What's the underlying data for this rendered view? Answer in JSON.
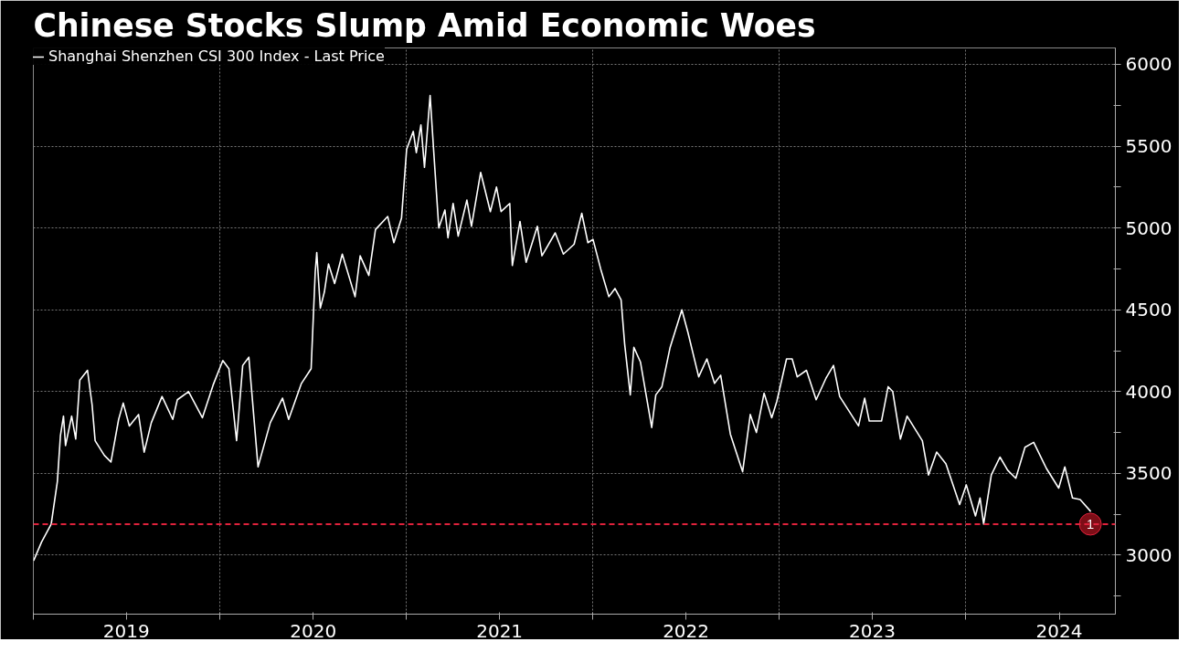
{
  "chart_data": {
    "type": "line",
    "title": "Chinese Stocks Slump Amid Economic Woes",
    "xlim": [
      "2019-01-01",
      "2024-10-20"
    ],
    "xticks": [
      {
        "value": "2019-01-01",
        "label": null
      },
      {
        "value": "2019-07-02",
        "label": "2019"
      },
      {
        "value": "2020-01-01",
        "label": null
      },
      {
        "value": "2020-07-02",
        "label": "2020"
      },
      {
        "value": "2021-01-01",
        "label": null
      },
      {
        "value": "2021-07-02",
        "label": "2021"
      },
      {
        "value": "2022-01-01",
        "label": null
      },
      {
        "value": "2022-07-02",
        "label": "2022"
      },
      {
        "value": "2023-01-01",
        "label": null
      },
      {
        "value": "2023-07-02",
        "label": "2023"
      },
      {
        "value": "2024-01-01",
        "label": null
      },
      {
        "value": "2024-07-02",
        "label": "2024"
      }
    ],
    "ylim": [
      2640,
      6100
    ],
    "yticks": [
      {
        "value": 2750,
        "label": null
      },
      3000,
      {
        "value": 3250,
        "label": null
      },
      3500,
      {
        "value": 3750,
        "label": null
      },
      4000,
      {
        "value": 4250,
        "label": null
      },
      4500,
      {
        "value": 4750,
        "label": null
      },
      5000,
      {
        "value": 5250,
        "label": null
      },
      5500,
      {
        "value": 5750,
        "label": null
      },
      6000
    ],
    "grid": true,
    "legend": "top left",
    "ref_lines": [
      {
        "axis": "y",
        "value": 3190,
        "label": null,
        "color": "#e0223c",
        "line_style": "dashed"
      }
    ],
    "annotations": [
      {
        "text": "1",
        "x": "2024-09-01",
        "y": 3190
      }
    ],
    "series": [
      {
        "name": "Shanghai Shenzhen CSI 300 Index - Last Price",
        "color": "#ffffff",
        "x": [
          "2019-01-02",
          "2019-01-17",
          "2019-02-05",
          "2019-02-17",
          "2019-02-23",
          "2019-03-01",
          "2019-03-05",
          "2019-03-17",
          "2019-03-25",
          "2019-04-02",
          "2019-04-17",
          "2019-04-26",
          "2019-05-02",
          "2019-05-20",
          "2019-06-02",
          "2019-06-17",
          "2019-06-26",
          "2019-07-08",
          "2019-07-26",
          "2019-08-06",
          "2019-08-20",
          "2019-09-10",
          "2019-10-01",
          "2019-10-10",
          "2019-11-01",
          "2019-11-28",
          "2019-12-19",
          "2020-01-07",
          "2020-01-19",
          "2020-02-03",
          "2020-02-15",
          "2020-02-27",
          "2020-03-16",
          "2020-04-09",
          "2020-05-03",
          "2020-05-15",
          "2020-06-09",
          "2020-06-28",
          "2020-07-06",
          "2020-07-09",
          "2020-07-16",
          "2020-07-24",
          "2020-08-01",
          "2020-08-13",
          "2020-08-28",
          "2020-09-22",
          "2020-10-02",
          "2020-10-19",
          "2020-11-01",
          "2020-11-25",
          "2020-12-07",
          "2020-12-22",
          "2021-01-01",
          "2021-01-14",
          "2021-01-20",
          "2021-01-29",
          "2021-02-05",
          "2021-02-16",
          "2021-02-23",
          "2021-03-05",
          "2021-03-17",
          "2021-03-23",
          "2021-04-02",
          "2021-04-12",
          "2021-04-29",
          "2021-05-08",
          "2021-05-26",
          "2021-06-14",
          "2021-06-26",
          "2021-07-05",
          "2021-07-22",
          "2021-07-27",
          "2021-08-11",
          "2021-08-23",
          "2021-09-14",
          "2021-09-23",
          "2021-10-19",
          "2021-11-04",
          "2021-11-25",
          "2021-12-10",
          "2021-12-22",
          "2022-01-01",
          "2022-01-16",
          "2022-02-01",
          "2022-02-13",
          "2022-02-25",
          "2022-03-04",
          "2022-03-15",
          "2022-03-22",
          "2022-04-04",
          "2022-04-26",
          "2022-05-04",
          "2022-05-16",
          "2022-06-01",
          "2022-06-24",
          "2022-07-06",
          "2022-07-27",
          "2022-08-12",
          "2022-08-27",
          "2022-09-08",
          "2022-09-27",
          "2022-10-21",
          "2022-11-05",
          "2022-11-17",
          "2022-12-02",
          "2022-12-17",
          "2022-12-27",
          "2023-01-15",
          "2023-01-26",
          "2023-02-05",
          "2023-02-23",
          "2023-03-14",
          "2023-04-02",
          "2023-04-17",
          "2023-04-29",
          "2023-06-05",
          "2023-06-17",
          "2023-06-26",
          "2023-07-20",
          "2023-08-02",
          "2023-08-11",
          "2023-08-26",
          "2023-09-08",
          "2023-10-08",
          "2023-10-20",
          "2023-11-05",
          "2023-11-23",
          "2023-12-20",
          "2024-01-02",
          "2024-01-20",
          "2024-01-29",
          "2024-02-05",
          "2024-02-20",
          "2024-03-08",
          "2024-03-23",
          "2024-04-08",
          "2024-04-26",
          "2024-05-13",
          "2024-06-07",
          "2024-07-01",
          "2024-07-13",
          "2024-07-28",
          "2024-08-12",
          "2024-09-01"
        ],
        "values": [
          2970,
          3080,
          3190,
          3450,
          3730,
          3850,
          3670,
          3850,
          3710,
          4070,
          4130,
          3920,
          3700,
          3610,
          3570,
          3830,
          3930,
          3790,
          3860,
          3630,
          3810,
          3970,
          3830,
          3950,
          4000,
          3840,
          4040,
          4190,
          4140,
          3700,
          4160,
          4210,
          3540,
          3810,
          3960,
          3830,
          4050,
          4140,
          4730,
          4850,
          4510,
          4610,
          4780,
          4660,
          4840,
          4580,
          4830,
          4710,
          4990,
          5070,
          4910,
          5060,
          5480,
          5590,
          5460,
          5630,
          5370,
          5810,
          5470,
          5000,
          5110,
          4940,
          5150,
          4950,
          5170,
          5010,
          5340,
          5100,
          5250,
          5100,
          5150,
          4770,
          5040,
          4790,
          5010,
          4830,
          4970,
          4840,
          4900,
          5090,
          4910,
          4930,
          4750,
          4580,
          4630,
          4560,
          4290,
          3980,
          4270,
          4180,
          3780,
          3980,
          4030,
          4270,
          4500,
          4360,
          4090,
          4200,
          4050,
          4100,
          3740,
          3510,
          3860,
          3750,
          3990,
          3840,
          3940,
          4200,
          4200,
          4090,
          4130,
          3950,
          4080,
          4160,
          3970,
          3790,
          3960,
          3820,
          3820,
          4030,
          4000,
          3710,
          3850,
          3700,
          3490,
          3630,
          3560,
          3310,
          3430,
          3240,
          3350,
          3190,
          3490,
          3600,
          3520,
          3470,
          3660,
          3690,
          3530,
          3410,
          3540,
          3350,
          3340,
          3270
        ]
      },
      {
        "color": "#8b0f1a",
        "type": "scatter",
        "marker": "circle",
        "x": [
          "2024-09-01"
        ],
        "values": [
          3190
        ]
      }
    ]
  }
}
